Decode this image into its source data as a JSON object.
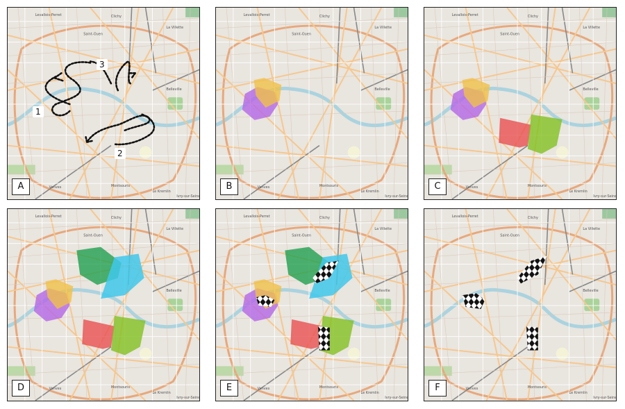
{
  "panels": [
    {
      "id": "A",
      "label": "A",
      "routes": [
        "1",
        "2",
        "3"
      ]
    },
    {
      "id": "B",
      "label": "B"
    },
    {
      "id": "C",
      "label": "C"
    },
    {
      "id": "D",
      "label": "D"
    },
    {
      "id": "E",
      "label": "E"
    },
    {
      "id": "F",
      "label": "F"
    }
  ],
  "map_labels": [
    "Levallois-Perret",
    "Clichy",
    "Saint-Ouen",
    "La Villette",
    "Belleville",
    "Montsouris",
    "Vanves",
    "Le Kremlin",
    "Ivry-sur-Seine"
  ],
  "colors": {
    "yellow": "#f0c048",
    "purple": "#b466e6",
    "red": "#e85050",
    "green_light": "#82c020",
    "green_dark": "#20a050",
    "cyan": "#40c8ec",
    "river": "#aad3df",
    "park": "#cdebb0"
  }
}
